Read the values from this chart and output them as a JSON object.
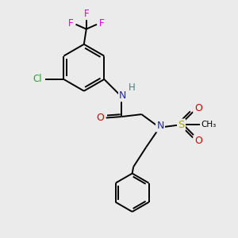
{
  "bg_color": "#ebebeb",
  "atom_colors": {
    "C": "#000000",
    "N": "#2020cc",
    "O": "#dd0000",
    "F": "#dd00dd",
    "Cl": "#22aa22",
    "S": "#aaaa00",
    "H": "#408080"
  },
  "bond_color": "#000000",
  "bond_width": 1.4,
  "figsize": [
    3.0,
    3.0
  ],
  "dpi": 100,
  "xlim": [
    0,
    10
  ],
  "ylim": [
    0,
    10
  ]
}
